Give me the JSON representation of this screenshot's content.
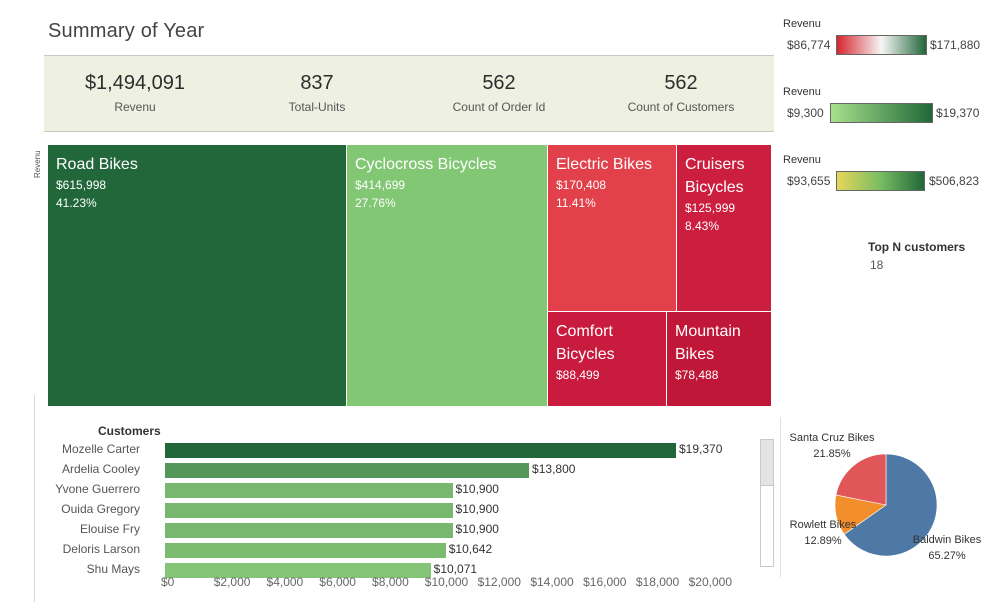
{
  "title": "Summary of Year",
  "kpis": [
    {
      "value": "$1,494,091",
      "label": "Revenu"
    },
    {
      "value": "837",
      "label": "Total-Units"
    },
    {
      "value": "562",
      "label": "Count of Order Id"
    },
    {
      "value": "562",
      "label": "Count of Customers"
    }
  ],
  "side_axis_label": "Revenu",
  "colors": {
    "dark_green": "#216739",
    "light_green": "#82c774",
    "red": "#e2404a",
    "crimson": "#cc1e3e",
    "crimson_dark": "#c01638",
    "pie_blue": "#4e79a7",
    "pie_red": "#e15759",
    "pie_orange": "#f28e2b",
    "kpi_band": "#eef0e2"
  },
  "treemap": [
    {
      "name": "Road Bikes",
      "revenue": "$615,998",
      "pct": "41.23%",
      "color": "#216739"
    },
    {
      "name": "Cyclocross Bicycles",
      "revenue": "$414,699",
      "pct": "27.76%",
      "color": "#82c774"
    },
    {
      "name": "Electric Bikes",
      "revenue": "$170,408",
      "pct": "11.41%",
      "color": "#e2404a"
    },
    {
      "name": "Cruisers Bicycles",
      "revenue": "$125,999",
      "pct": "8.43%",
      "color": "#cc1e3e"
    },
    {
      "name": "Comfort Bicycles",
      "revenue": "$88,499",
      "pct": "",
      "color": "#c81b3d"
    },
    {
      "name": "Mountain Bikes",
      "revenue": "$78,488",
      "pct": "",
      "color": "#c01638"
    }
  ],
  "legends": [
    {
      "title": "Revenu",
      "min": "$86,774",
      "max": "$171,880",
      "gradient": [
        "#d6262f",
        "#f6f6f6",
        "#216739"
      ]
    },
    {
      "title": "Revenu",
      "min": "$9,300",
      "max": "$19,370",
      "gradient": [
        "#a8e08c",
        "#216739"
      ]
    },
    {
      "title": "Revenu",
      "min": "$93,655",
      "max": "$506,823",
      "gradient": [
        "#e7d65a",
        "#78bd62",
        "#216739"
      ]
    }
  ],
  "topn": {
    "label": "Top N customers",
    "value": "18"
  },
  "chart_data": [
    {
      "type": "bar",
      "orientation": "horizontal",
      "title": "Customers",
      "categories": [
        "Mozelle Carter",
        "Ardelia Cooley",
        "Yvone Guerrero",
        "Ouida Gregory",
        "Elouise Fry",
        "Deloris Larson",
        "Shu Mays"
      ],
      "values": [
        19370,
        13800,
        10900,
        10900,
        10900,
        10642,
        10071
      ],
      "value_labels": [
        "$19,370",
        "$13,800",
        "$10,900",
        "$10,900",
        "$10,900",
        "$10,642",
        "$10,071"
      ],
      "xlim": [
        0,
        22000
      ],
      "x_ticks": [
        "$0",
        "$2,000",
        "$4,000",
        "$6,000",
        "$8,000",
        "$10,000",
        "$12,000",
        "$14,000",
        "$16,000",
        "$18,000",
        "$20,000"
      ],
      "x_tick_values": [
        0,
        2000,
        4000,
        6000,
        8000,
        10000,
        12000,
        14000,
        16000,
        18000,
        20000
      ]
    },
    {
      "type": "pie",
      "slices": [
        {
          "name": "Baldwin Bikes",
          "pct_label": "65.27%",
          "value": 65.27,
          "color": "#4e79a7"
        },
        {
          "name": "Rowlett Bikes",
          "pct_label": "12.89%",
          "value": 12.89,
          "color": "#f28e2b"
        },
        {
          "name": "Santa Cruz Bikes",
          "pct_label": "21.85%",
          "value": 21.85,
          "color": "#e15759"
        }
      ]
    }
  ]
}
